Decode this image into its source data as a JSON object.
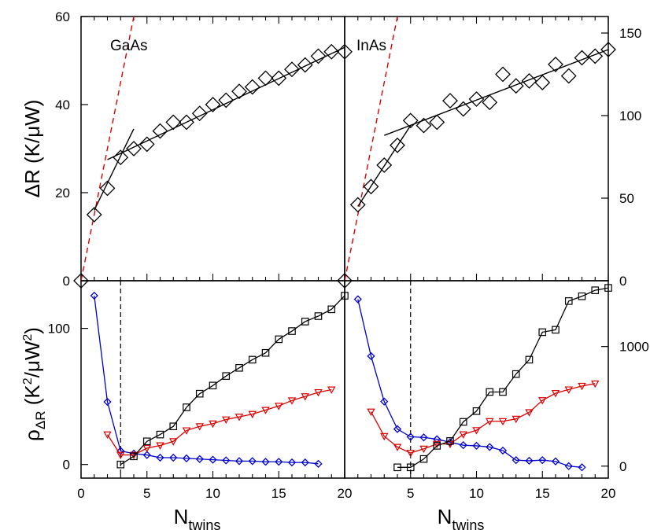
{
  "chart_data": [
    {
      "id": "gaas_dr",
      "type": "scatter",
      "label": "GaAs",
      "ylabel": "ΔR (K/μW)",
      "xlim": [
        0,
        20
      ],
      "ylim": [
        0,
        60
      ],
      "yticks": [
        0,
        20,
        40,
        60
      ],
      "series": [
        {
          "style": "diamond-open",
          "color": "#000000",
          "x": [
            0,
            1,
            2,
            3,
            4,
            5,
            6,
            7,
            8,
            9,
            10,
            11,
            12,
            13,
            14,
            15,
            16,
            17,
            18,
            19,
            20
          ],
          "y": [
            0,
            15,
            21,
            28,
            30,
            31,
            34,
            36,
            36,
            38,
            40,
            41,
            43,
            44,
            46,
            46,
            48,
            49,
            51,
            52,
            52
          ]
        }
      ],
      "fit_lines": [
        {
          "style": "dashed",
          "color": "#dd0000",
          "x": [
            0,
            4
          ],
          "y": [
            0,
            60
          ]
        },
        {
          "style": "solid",
          "color": "#000000",
          "x": [
            1,
            4
          ],
          "y": [
            16,
            34.5
          ]
        },
        {
          "style": "solid",
          "color": "#000000",
          "x": [
            2,
            20
          ],
          "y": [
            27.5,
            53
          ]
        }
      ]
    },
    {
      "id": "inas_dr",
      "type": "scatter",
      "label": "InAs",
      "xlim": [
        0,
        20
      ],
      "ylim": [
        0,
        160
      ],
      "yticks": [
        0,
        50,
        100,
        150
      ],
      "series": [
        {
          "style": "diamond-open",
          "color": "#000000",
          "x": [
            0,
            1,
            2,
            3,
            4,
            5,
            6,
            7,
            8,
            9,
            10,
            11,
            12,
            13,
            14,
            15,
            16,
            17,
            18,
            19,
            20
          ],
          "y": [
            0,
            46,
            57,
            70,
            82,
            97,
            94,
            96,
            109,
            104,
            110,
            108,
            125,
            118,
            121,
            120,
            131,
            124,
            135,
            136,
            140
          ]
        }
      ],
      "fit_lines": [
        {
          "style": "dashed",
          "color": "#dd0000",
          "x": [
            0,
            4
          ],
          "y": [
            0,
            160
          ]
        },
        {
          "style": "solid",
          "color": "#000000",
          "x": [
            1,
            5
          ],
          "y": [
            45,
            94
          ]
        },
        {
          "style": "solid",
          "color": "#000000",
          "x": [
            3,
            20
          ],
          "y": [
            88,
            140
          ]
        }
      ]
    },
    {
      "id": "gaas_rho",
      "type": "line",
      "ylabel": "ρΔR (K²/μW²)",
      "xlabel": "Ntwins",
      "xlim": [
        0,
        20
      ],
      "ylim": [
        -10,
        135
      ],
      "xticks": [
        0,
        5,
        10,
        15,
        20
      ],
      "yticks": [
        0,
        100
      ],
      "vline": 3,
      "series": [
        {
          "color": "#0000cc",
          "marker": "diamond",
          "x": [
            1,
            2,
            3,
            4,
            5,
            6,
            7,
            8,
            9,
            10,
            11,
            12,
            13,
            14,
            15,
            16,
            17,
            18
          ],
          "y": [
            124,
            46,
            10,
            8,
            7,
            5,
            5,
            4.5,
            4,
            3.5,
            3,
            2.5,
            2.5,
            2,
            2,
            1.5,
            1.5,
            0.5
          ]
        },
        {
          "color": "#dd0000",
          "marker": "triangle-down",
          "x": [
            2,
            3,
            4,
            5,
            6,
            7,
            8,
            9,
            10,
            11,
            12,
            13,
            14,
            15,
            16,
            17,
            18,
            19
          ],
          "y": [
            22,
            7,
            7,
            12,
            14,
            17,
            25,
            28,
            30,
            33,
            35,
            37,
            40,
            43,
            47,
            50,
            53,
            55
          ]
        },
        {
          "color": "#000000",
          "marker": "square",
          "x": [
            3,
            4,
            5,
            6,
            7,
            8,
            9,
            10,
            11,
            12,
            13,
            14,
            15,
            16,
            17,
            18,
            19,
            20
          ],
          "y": [
            0,
            6,
            17,
            22,
            28,
            42,
            52,
            58,
            65,
            71,
            77,
            82,
            92,
            98,
            105,
            109,
            114,
            124
          ]
        }
      ]
    },
    {
      "id": "inas_rho",
      "type": "line",
      "xlabel": "Ntwins",
      "xlim": [
        0,
        20
      ],
      "ylim": [
        -100,
        1550
      ],
      "xticks": [
        5,
        10,
        15,
        20
      ],
      "yticks": [
        0,
        1000
      ],
      "vline": 5,
      "series": [
        {
          "color": "#0000cc",
          "marker": "diamond",
          "x": [
            1,
            2,
            3,
            4,
            5,
            6,
            7,
            8,
            9,
            10,
            11,
            12,
            13,
            14,
            15,
            16,
            17,
            18
          ],
          "y": [
            1395,
            920,
            540,
            310,
            245,
            240,
            225,
            200,
            175,
            170,
            160,
            130,
            50,
            45,
            50,
            40,
            0,
            -10
          ]
        },
        {
          "color": "#dd0000",
          "marker": "triangle-down",
          "x": [
            2,
            3,
            4,
            5,
            6,
            7,
            8,
            9,
            10,
            11,
            12,
            13,
            14,
            15,
            16,
            17,
            18,
            19
          ],
          "y": [
            455,
            250,
            160,
            110,
            145,
            185,
            185,
            265,
            300,
            375,
            375,
            395,
            450,
            550,
            610,
            640,
            670,
            690
          ]
        },
        {
          "color": "#000000",
          "marker": "square",
          "x": [
            4,
            5,
            6,
            7,
            8,
            9,
            10,
            11,
            12,
            13,
            14,
            15,
            16,
            17,
            18,
            19,
            20
          ],
          "y": [
            -10,
            -10,
            60,
            170,
            210,
            370,
            460,
            620,
            620,
            770,
            890,
            1120,
            1140,
            1380,
            1420,
            1470,
            1490
          ]
        }
      ]
    }
  ]
}
